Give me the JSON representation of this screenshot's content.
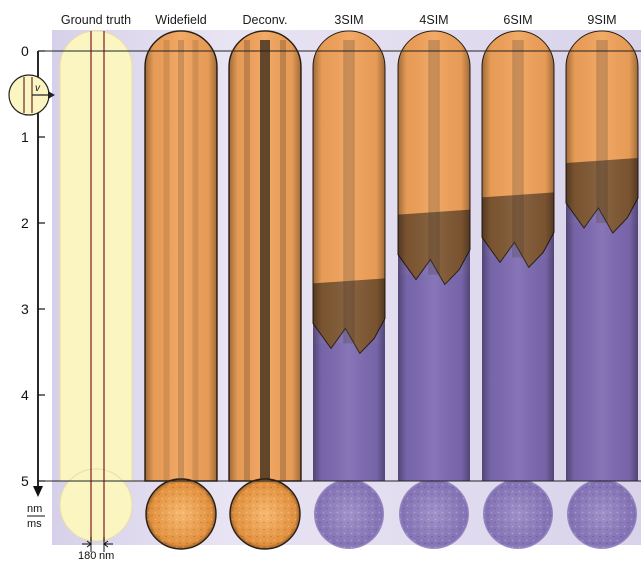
{
  "columns": [
    {
      "label": "Ground truth",
      "kind": "truth"
    },
    {
      "label": "Widefield",
      "kind": "widefield",
      "melt": null
    },
    {
      "label": "Deconv.",
      "kind": "deconv",
      "melt": null
    },
    {
      "label": "3SIM",
      "kind": "sim",
      "melt": 3.4
    },
    {
      "label": "4SIM",
      "kind": "sim",
      "melt": 2.6
    },
    {
      "label": "6SIM",
      "kind": "sim",
      "melt": 2.4
    },
    {
      "label": "9SIM",
      "kind": "sim",
      "melt": 2.0
    }
  ],
  "time_axis": {
    "ticks": [
      "0",
      "1",
      "2",
      "3",
      "4",
      "5"
    ],
    "unit_top": "nm",
    "unit_bottom": "ms",
    "range": [
      0,
      5
    ]
  },
  "scale_bar": {
    "value": "180",
    "unit": "nm"
  },
  "inset_label": "v",
  "colors": {
    "truth_fill": "#fbf5c2",
    "truth_line": "#8a2a2a",
    "orange": "#f2a35a",
    "orange_light": "#f8bf78",
    "dark": "#231c14",
    "purple": "#6e5aa6",
    "purple_light": "#cfc7e4",
    "background_tint": "#dcd6ec"
  }
}
